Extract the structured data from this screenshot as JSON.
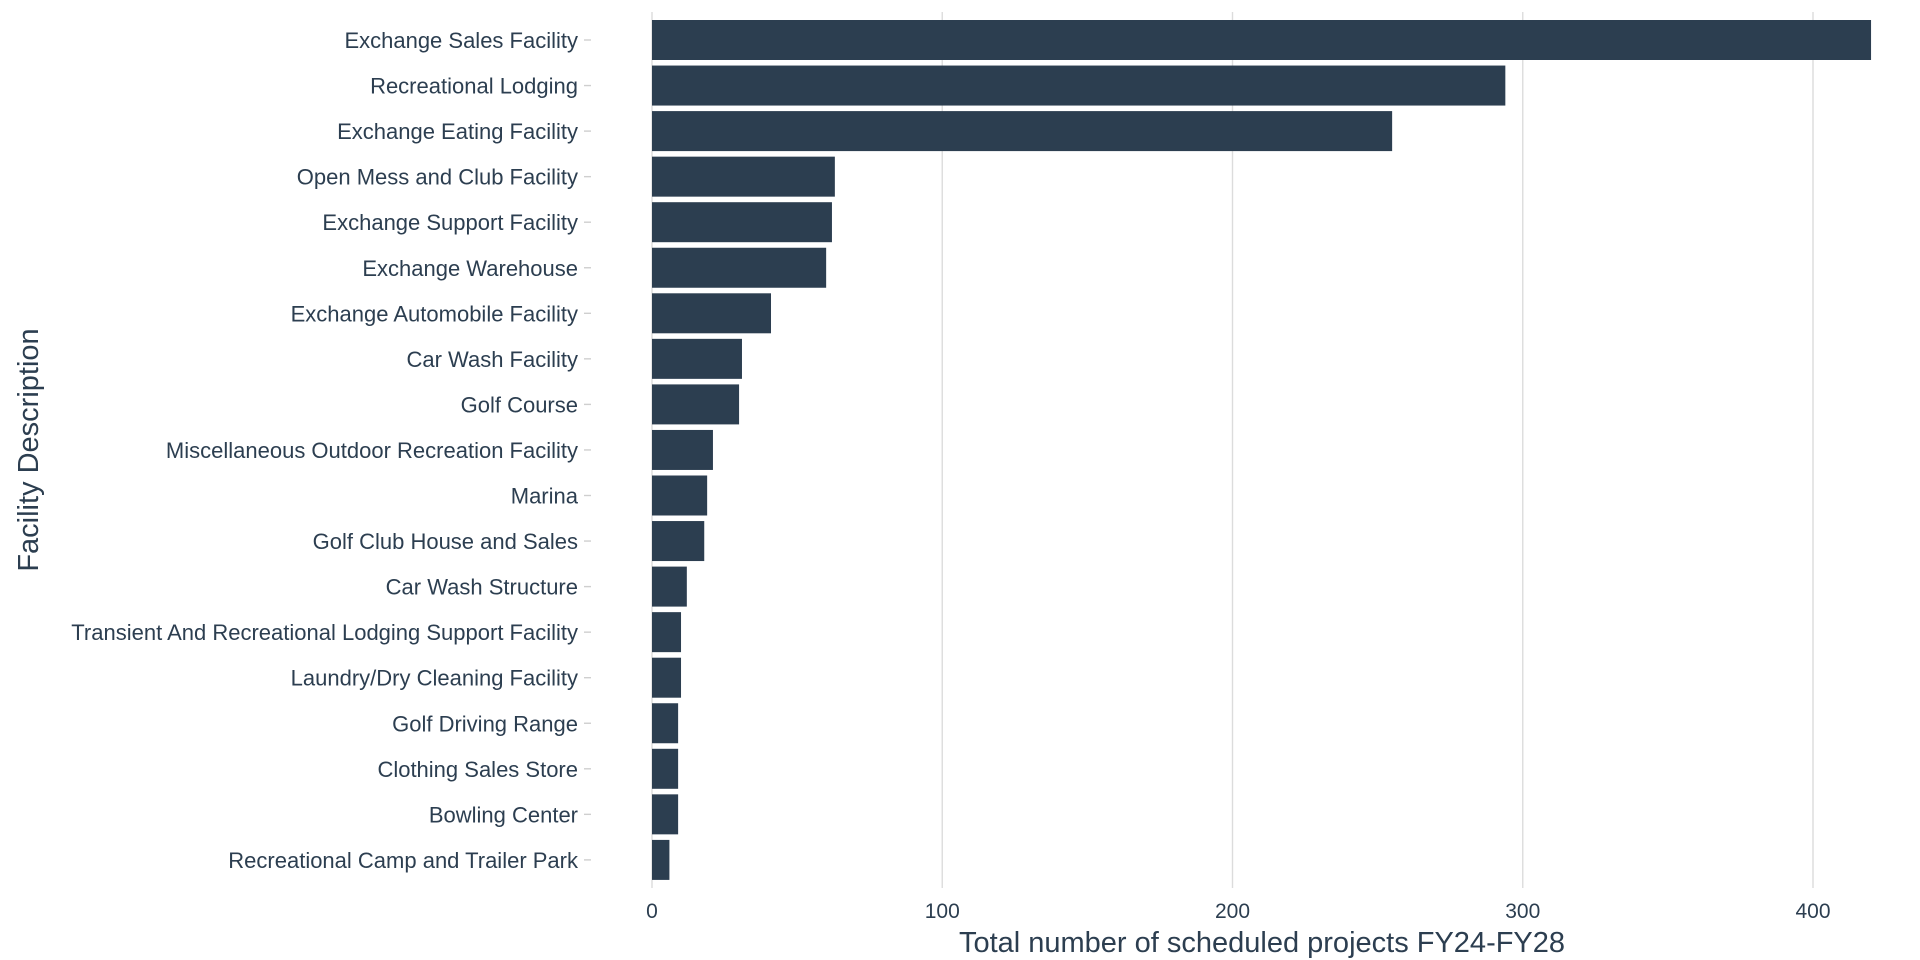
{
  "chart_data": {
    "type": "bar",
    "orientation": "horizontal",
    "xlabel": "Total number of scheduled projects FY24-FY28",
    "ylabel": "Facility Description",
    "xlim": [
      0,
      420
    ],
    "xticks": [
      0,
      100,
      200,
      300,
      400
    ],
    "grid": "vertical-major",
    "bar_color": "#2c3e50",
    "categories": [
      "Exchange Sales Facility",
      "Recreational Lodging",
      "Exchange Eating Facility",
      "Open Mess and Club Facility",
      "Exchange Support Facility",
      "Exchange Warehouse",
      "Exchange Automobile Facility",
      "Car Wash Facility",
      "Golf Course",
      "Miscellaneous Outdoor Recreation Facility",
      "Marina",
      "Golf Club House and Sales",
      "Car Wash Structure",
      "Transient And Recreational Lodging Support Facility",
      "Laundry/Dry Cleaning Facility",
      "Golf Driving Range",
      "Clothing Sales Store",
      "Bowling Center",
      "Recreational Camp and Trailer Park"
    ],
    "values": [
      420,
      294,
      255,
      63,
      62,
      60,
      41,
      31,
      30,
      21,
      19,
      18,
      12,
      10,
      10,
      9,
      9,
      9,
      6
    ]
  }
}
